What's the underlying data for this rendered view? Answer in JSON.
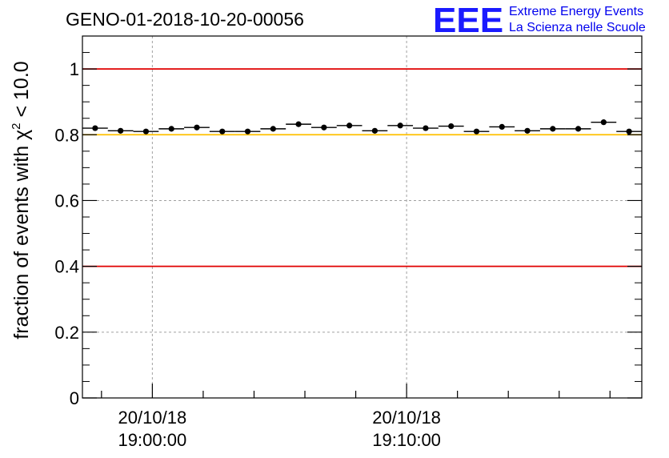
{
  "chart_data": {
    "type": "scatter",
    "title": "GENO-01-2018-10-20-00056",
    "ylabel_prefix": "fraction of events with",
    "ylabel_symbol": "χ",
    "ylabel_superscript": "2",
    "ylabel_suffix": "< 10.0",
    "ylim": [
      0,
      1.1
    ],
    "yticks": [
      {
        "value": 0,
        "label": "0"
      },
      {
        "value": 0.2,
        "label": "0.2"
      },
      {
        "value": 0.4,
        "label": "0.4"
      },
      {
        "value": 0.6,
        "label": "0.6"
      },
      {
        "value": 0.8,
        "label": "0.8"
      },
      {
        "value": 1,
        "label": "1"
      }
    ],
    "xlim_minutes": [
      -2.75,
      19.25
    ],
    "xticks": [
      {
        "minutes": 0,
        "date": "20/10/18",
        "time": "19:00:00"
      },
      {
        "minutes": 10,
        "date": "20/10/18",
        "time": "19:10:00"
      }
    ],
    "grid": true,
    "reference_lines": [
      {
        "value": 1.0,
        "color": "#e00000"
      },
      {
        "value": 0.8,
        "color": "#ffc000"
      },
      {
        "value": 0.4,
        "color": "#e00000"
      }
    ],
    "series": [
      {
        "name": "fraction",
        "bin_width_minutes": 1,
        "x_minutes": [
          -2.25,
          -1.25,
          -0.25,
          0.75,
          1.75,
          2.75,
          3.75,
          4.75,
          5.75,
          6.75,
          7.75,
          8.75,
          9.75,
          10.75,
          11.75,
          12.75,
          13.75,
          14.75,
          15.75,
          16.75,
          17.75,
          18.75
        ],
        "values": [
          0.82,
          0.812,
          0.81,
          0.818,
          0.822,
          0.81,
          0.81,
          0.818,
          0.832,
          0.822,
          0.828,
          0.812,
          0.828,
          0.82,
          0.826,
          0.81,
          0.824,
          0.812,
          0.818,
          0.818,
          0.838,
          0.81
        ]
      }
    ]
  },
  "logo": {
    "mark": "EEE",
    "line1": "Extreme Energy Events",
    "line2": "La Scienza nelle Scuole"
  }
}
